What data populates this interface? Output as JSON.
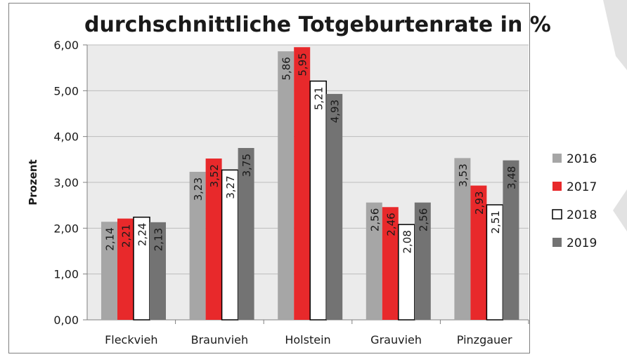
{
  "colors": {
    "plot_bg": "#ebebeb",
    "grid": "#bdbdbd",
    "axis": "#7f7f7f",
    "frame": "#7f7f7f",
    "text": "#1a1a1a"
  },
  "chart_data": {
    "type": "bar",
    "title": "durchschnittliche Totgeburtenrate in %",
    "xlabel": "",
    "ylabel": "Prozent",
    "ylim": [
      0,
      6
    ],
    "yticks": [
      "0,00",
      "1,00",
      "2,00",
      "3,00",
      "4,00",
      "5,00",
      "6,00"
    ],
    "grid": true,
    "legend_position": "right",
    "categories": [
      "Fleckvieh",
      "Braunvieh",
      "Holstein",
      "Grauvieh",
      "Pinzgauer"
    ],
    "series": [
      {
        "name": "2016",
        "color": "#a6a6a6",
        "values": [
          2.14,
          3.23,
          5.86,
          2.56,
          3.53
        ],
        "labels": [
          "2,14",
          "3,23",
          "5,86",
          "2,56",
          "3,53"
        ]
      },
      {
        "name": "2017",
        "color": "#e8292b",
        "values": [
          2.21,
          3.52,
          5.95,
          2.46,
          2.93
        ],
        "labels": [
          "2,21",
          "3,52",
          "5,95",
          "2,46",
          "2,93"
        ]
      },
      {
        "name": "2018",
        "color": "#ffffff",
        "values": [
          2.24,
          3.27,
          5.21,
          2.08,
          2.51
        ],
        "labels": [
          "2,24",
          "3,27",
          "5,21",
          "2,08",
          "2,51"
        ]
      },
      {
        "name": "2019",
        "color": "#737373",
        "values": [
          2.13,
          3.75,
          4.93,
          2.56,
          3.48
        ],
        "labels": [
          "2,13",
          "3,75",
          "4,93",
          "2,56",
          "3,48"
        ]
      }
    ]
  }
}
